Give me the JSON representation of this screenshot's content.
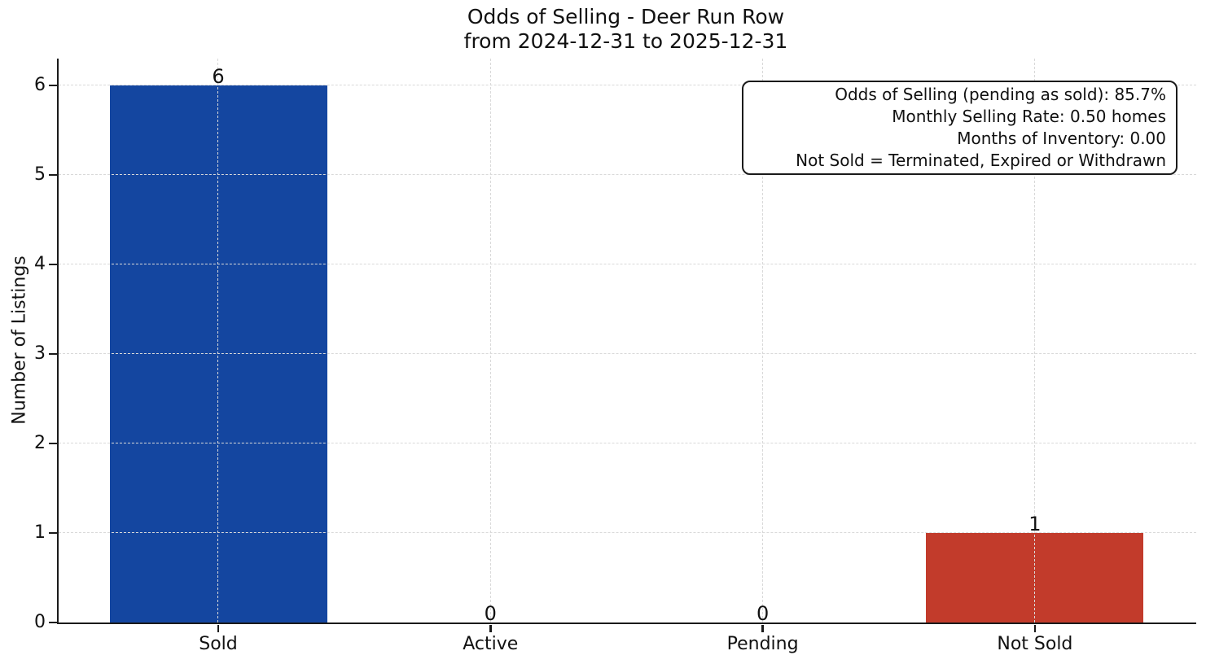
{
  "chart_data": {
    "type": "bar",
    "title": "Odds of Selling - Deer Run Row",
    "subtitle": "from 2024-12-31 to 2025-12-31",
    "categories": [
      "Sold",
      "Active",
      "Pending",
      "Not Sold"
    ],
    "values": [
      6,
      0,
      0,
      1
    ],
    "bar_colors": [
      "#1446a0",
      null,
      null,
      "#c23b2b"
    ],
    "ylabel": "Number of Listings",
    "yticks": [
      0,
      1,
      2,
      3,
      4,
      5,
      6
    ],
    "ylim": [
      0,
      6.3
    ],
    "grid": "dashed-both-axes",
    "legend": "none",
    "annotation": {
      "lines": [
        "Odds of Selling (pending as sold): 85.7%",
        "Monthly Selling Rate: 0.50 homes",
        "Months of Inventory: 0.00",
        "Not Sold = Terminated, Expired or Withdrawn"
      ]
    }
  },
  "colors": {
    "sold_bar": "#1446a0",
    "not_sold_bar": "#c23b2b",
    "axis": "#1a1a1a",
    "grid": "#d9d9d9",
    "background": "#ffffff"
  }
}
